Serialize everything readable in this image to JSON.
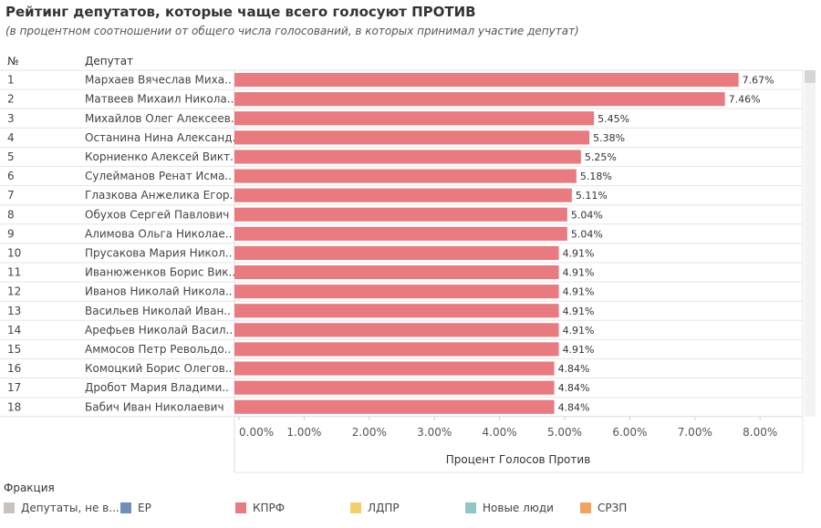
{
  "title": "Рейтинг депутатов, которые чаще всего голосуют ПРОТИВ",
  "subtitle": "(в процентном соотношении от общего числа голосований, в которых принимал участие депутат)",
  "legend": {
    "title": "Фракция",
    "items": [
      {
        "label": "Депутаты, не в...",
        "color": "#c9c3bf"
      },
      {
        "label": "ЕР",
        "color": "#6f8fb8"
      },
      {
        "label": "КПРФ",
        "color": "#e87a80"
      },
      {
        "label": "ЛДПР",
        "color": "#f3cf6a"
      },
      {
        "label": "Новые люди",
        "color": "#8ec7c3"
      },
      {
        "label": "СРЗП",
        "color": "#f0a45d"
      }
    ]
  },
  "chart_data": {
    "type": "bar",
    "orientation": "horizontal",
    "row_header_number": "№",
    "row_header_name": "Депутат",
    "xlabel": "Процент Голосов Против",
    "xlim": [
      0,
      8.6
    ],
    "xticks": [
      "0.00%",
      "1.00%",
      "2.00%",
      "3.00%",
      "4.00%",
      "5.00%",
      "6.00%",
      "7.00%",
      "8.00%"
    ],
    "bar_color": "#e87a80",
    "rows": [
      {
        "rank": "1",
        "name": "Мархаев Вячеслав Миха..",
        "value": 7.67,
        "label": "7.67%"
      },
      {
        "rank": "2",
        "name": "Матвеев Михаил Никола..",
        "value": 7.46,
        "label": "7.46%"
      },
      {
        "rank": "3",
        "name": "Михайлов Олег Алексеев..",
        "value": 5.45,
        "label": "5.45%"
      },
      {
        "rank": "4",
        "name": "Останина Нина Александ..",
        "value": 5.38,
        "label": "5.38%"
      },
      {
        "rank": "5",
        "name": "Корниенко Алексей Викт..",
        "value": 5.25,
        "label": "5.25%"
      },
      {
        "rank": "6",
        "name": "Сулейманов Ренат Исма..",
        "value": 5.18,
        "label": "5.18%"
      },
      {
        "rank": "7",
        "name": "Глазкова Анжелика Егор..",
        "value": 5.11,
        "label": "5.11%"
      },
      {
        "rank": "8",
        "name": "Обухов Сергей Павлович",
        "value": 5.04,
        "label": "5.04%"
      },
      {
        "rank": "9",
        "name": "Алимова Ольга Николае..",
        "value": 5.04,
        "label": "5.04%"
      },
      {
        "rank": "10",
        "name": "Прусакова Мария Никол..",
        "value": 4.91,
        "label": "4.91%"
      },
      {
        "rank": "11",
        "name": "Иванюженков Борис Вик..",
        "value": 4.91,
        "label": "4.91%"
      },
      {
        "rank": "12",
        "name": "Иванов Николай Никола..",
        "value": 4.91,
        "label": "4.91%"
      },
      {
        "rank": "13",
        "name": "Васильев Николай Иван..",
        "value": 4.91,
        "label": "4.91%"
      },
      {
        "rank": "14",
        "name": "Арефьев Николай Васил..",
        "value": 4.91,
        "label": "4.91%"
      },
      {
        "rank": "15",
        "name": "Аммосов Петр Револьдо..",
        "value": 4.91,
        "label": "4.91%"
      },
      {
        "rank": "16",
        "name": "Комоцкий Борис Олегов..",
        "value": 4.84,
        "label": "4.84%"
      },
      {
        "rank": "17",
        "name": "Дробот Мария Владими..",
        "value": 4.84,
        "label": "4.84%"
      },
      {
        "rank": "18",
        "name": "Бабич Иван Николаевич",
        "value": 4.84,
        "label": "4.84%"
      }
    ]
  }
}
